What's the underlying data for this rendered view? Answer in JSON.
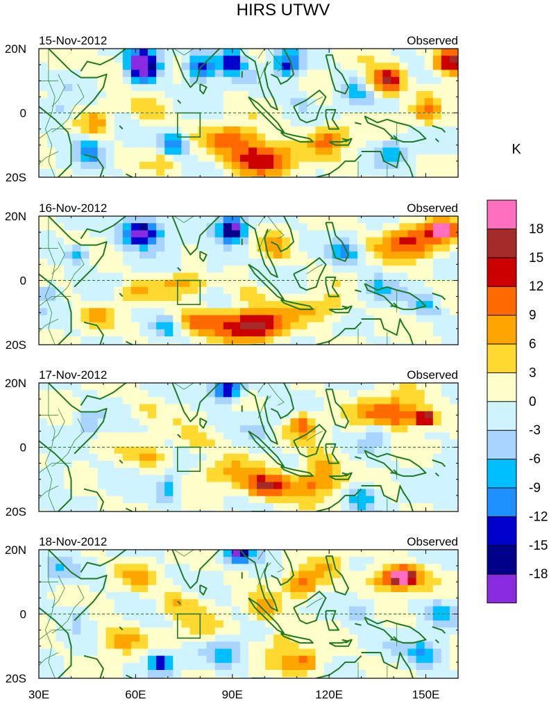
{
  "title": "HIRS UTWV",
  "unit_label": "K",
  "colorbar": {
    "labels": [
      "18",
      "15",
      "12",
      "9",
      "6",
      "3",
      "0",
      "-3",
      "-6",
      "-9",
      "-12",
      "-15",
      "-18"
    ],
    "colors": [
      "#ff6fc0",
      "#a52a2a",
      "#cc0000",
      "#ff6a00",
      "#ffa500",
      "#ffd930",
      "#ffffcc",
      "#d0f4ff",
      "#a8d4ff",
      "#00bfff",
      "#1e90ff",
      "#0000cd",
      "#00008b",
      "#8a2be2"
    ]
  },
  "axes": {
    "x_ticks": [
      "30E",
      "60E",
      "90E",
      "120E",
      "150E"
    ],
    "y_ticks": [
      "20N",
      "0",
      "20S"
    ]
  },
  "panels": [
    {
      "date": "15-Nov-2012",
      "label": "Observed"
    },
    {
      "date": "16-Nov-2012",
      "label": "Observed"
    },
    {
      "date": "17-Nov-2012",
      "label": "Observed"
    },
    {
      "date": "18-Nov-2012",
      "label": "Observed"
    }
  ],
  "style": {
    "coast_color": "#1e7a1e",
    "border_color": "#2e8b2e",
    "equator_color": "#1e7a1e"
  }
}
